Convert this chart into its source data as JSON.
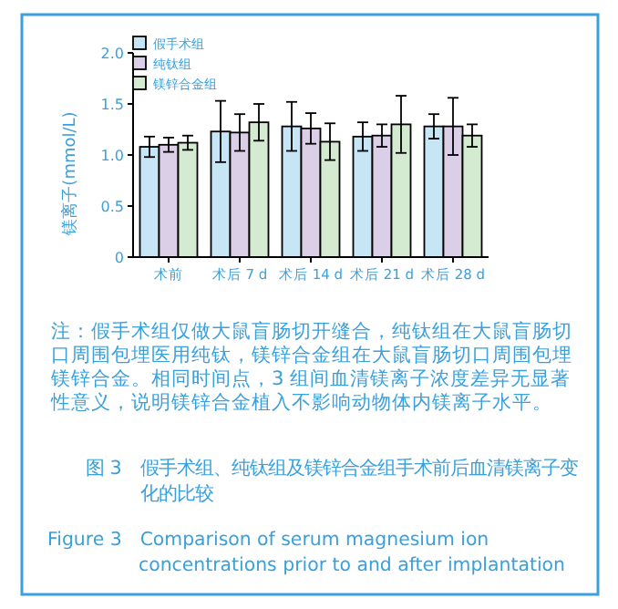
{
  "chart_data": {
    "type": "bar",
    "ylabel": "镁离子(mmol/L)",
    "categories": [
      "术前",
      "术后 7 d",
      "术后 14 d",
      "术后 21 d",
      "术后 28 d"
    ],
    "series": [
      {
        "name": "假手术组",
        "color": "#c6e6f6",
        "values": [
          1.08,
          1.23,
          1.28,
          1.18,
          1.28
        ],
        "errors": [
          0.1,
          0.3,
          0.24,
          0.14,
          0.12
        ]
      },
      {
        "name": "纯钛组",
        "color": "#dacfe7",
        "values": [
          1.1,
          1.22,
          1.26,
          1.19,
          1.28
        ],
        "errors": [
          0.07,
          0.18,
          0.15,
          0.11,
          0.28
        ]
      },
      {
        "name": "镁锌合金组",
        "color": "#d5ebd1",
        "values": [
          1.12,
          1.32,
          1.13,
          1.3,
          1.19
        ],
        "errors": [
          0.07,
          0.18,
          0.18,
          0.28,
          0.11
        ]
      }
    ],
    "ylim": [
      0,
      2
    ],
    "yticks": [
      0,
      {
        "value": 0.5,
        "label": "0.5"
      },
      {
        "value": 1,
        "label": "1.0"
      },
      {
        "value": 1.5,
        "label": "1.5"
      },
      {
        "value": 2,
        "label": "2.0"
      }
    ],
    "legend": "top left",
    "annotations": [
      "注：假手术组仅做大鼠盲肠切开缝合，纯钛组在大鼠盲肠切口周围包埋医用纯钛，镁锌合金组在大鼠盲肠切口周围包埋镁锌合金。相同时间点，3 组间血清镁离子浓度差异无显著性意义，说明镁锌合金植入不影响动物体内镁离子水平。",
      "图 3　假手术组、纯钛组及镁锌合金组手术前后血清镁离子变化的比较",
      "Figure 3　Comparison of serum magnesium ion concentrations prior to and after implantation"
    ]
  }
}
